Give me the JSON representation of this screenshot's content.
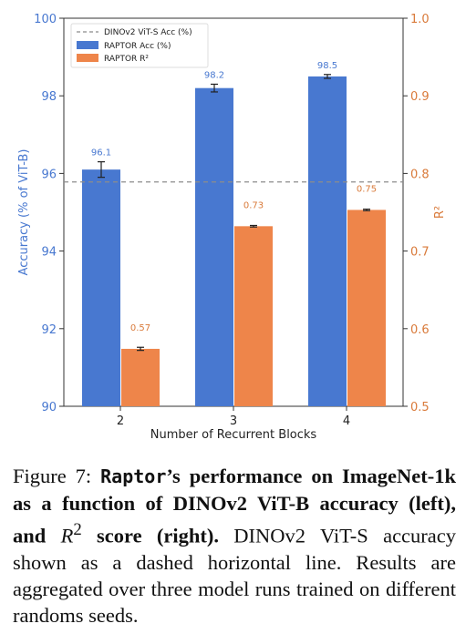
{
  "chart_data": {
    "type": "bar",
    "categories": [
      "2",
      "3",
      "4"
    ],
    "xlabel": "Number of Recurrent Blocks",
    "ylabel_left": "Accuracy (% of ViT-B)",
    "ylabel_right": "R²",
    "ylim_left": [
      90,
      100
    ],
    "ylim_right": [
      0.5,
      1.0
    ],
    "yticks_left": [
      "90",
      "92",
      "94",
      "96",
      "98",
      "100"
    ],
    "yticks_right": [
      "0.5",
      "0.6",
      "0.7",
      "0.8",
      "0.9",
      "1.0"
    ],
    "grid": false,
    "legend_position": "top-left",
    "series": [
      {
        "name": "RAPTOR Acc (%)",
        "axis": "left",
        "color": "#4878d0",
        "values": [
          96.1,
          98.2,
          98.5
        ],
        "errors": [
          0.2,
          0.1,
          0.05
        ],
        "labels": [
          "96.1",
          "98.2",
          "98.5"
        ]
      },
      {
        "name": "RAPTOR R²",
        "axis": "right",
        "color": "#ee854a",
        "values": [
          0.574,
          0.732,
          0.753
        ],
        "errors": [
          0.002,
          0.001,
          0.001
        ],
        "labels": [
          "0.57",
          "0.73",
          "0.75"
        ]
      }
    ],
    "reference_line": {
      "name": "DINOv2 ViT-S Acc (%)",
      "axis": "left",
      "value": 95.78,
      "color": "#8c8c8c"
    }
  },
  "caption": {
    "prefix": "Figure 7:",
    "name": "Raptor",
    "bold_rest": "’s performance on ImageNet-1k as a function of DINOv2 ViT-B accuracy (left), and ",
    "r2_symbol": "R",
    "r2_sup": "2",
    "bold_end": " score (right).",
    "rest": " DINOv2 ViT-S accuracy shown as a dashed horizontal line. Results are aggregated over three model runs trained on different randoms seeds."
  }
}
